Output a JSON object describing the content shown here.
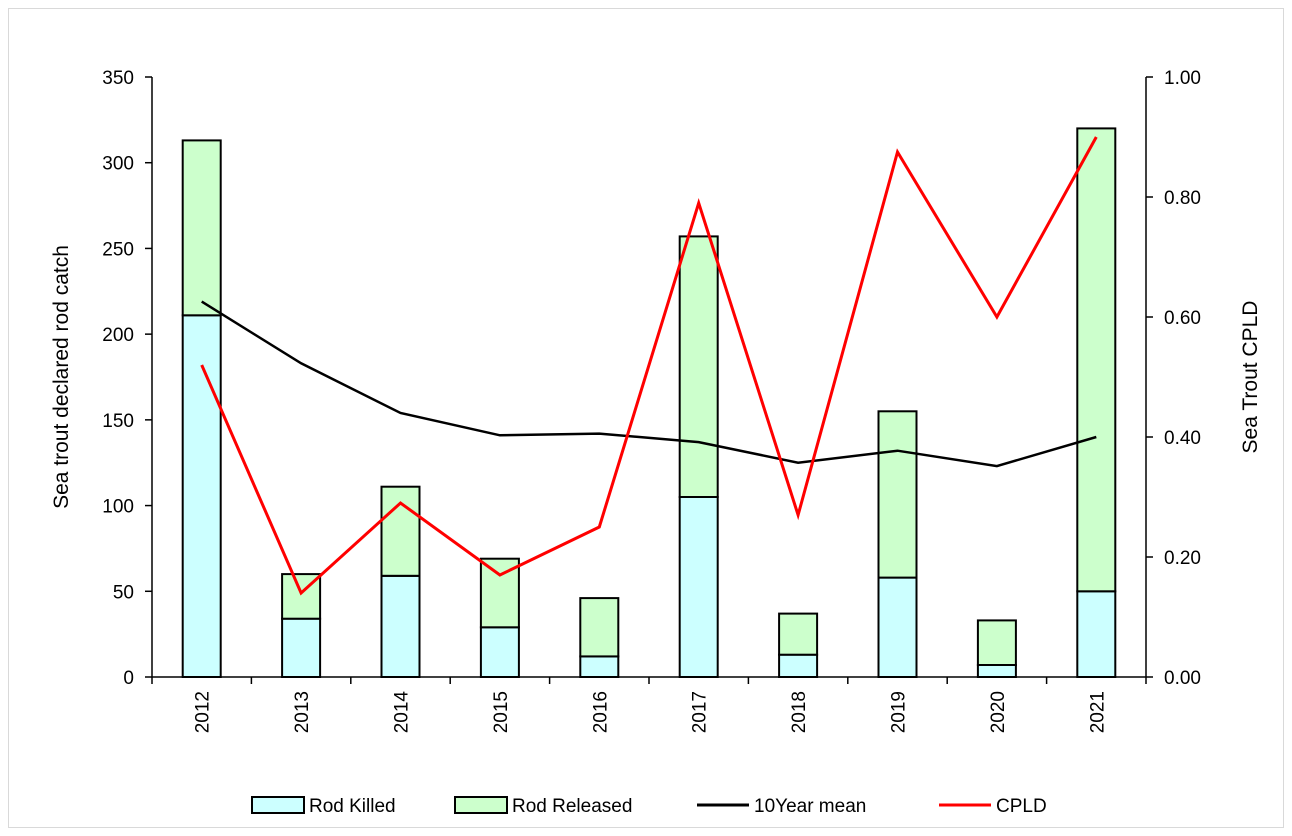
{
  "chart_data": {
    "type": "bar",
    "categories": [
      "2012",
      "2013",
      "2014",
      "2015",
      "2016",
      "2017",
      "2018",
      "2019",
      "2020",
      "2021"
    ],
    "series": [
      {
        "name": "Rod Killed",
        "type": "bar",
        "stack": "catch",
        "axis": "left",
        "color": "#ccffff",
        "values": [
          211,
          34,
          59,
          29,
          12,
          105,
          13,
          58,
          7,
          50
        ]
      },
      {
        "name": "Rod Released",
        "type": "bar",
        "stack": "catch",
        "axis": "left",
        "color": "#ccffcc",
        "values": [
          102,
          26,
          52,
          40,
          34,
          152,
          24,
          97,
          26,
          270
        ]
      },
      {
        "name": "10Year mean",
        "type": "line",
        "axis": "left",
        "color": "#000000",
        "values": [
          219,
          183,
          154,
          141,
          142,
          137,
          125,
          132,
          123,
          140
        ]
      },
      {
        "name": "CPLD",
        "type": "line",
        "axis": "right",
        "color": "#ff0000",
        "values": [
          0.52,
          0.14,
          0.29,
          0.17,
          0.25,
          0.79,
          0.27,
          0.875,
          0.6,
          0.9
        ]
      }
    ],
    "ylabel": "Sea trout declared rod catch",
    "y2label": "Sea Trout CPLD",
    "ylim": [
      0,
      350
    ],
    "y2lim": [
      0,
      1.0
    ],
    "yticks": [
      "0",
      "50",
      "100",
      "150",
      "200",
      "250",
      "300",
      "350"
    ],
    "y2ticks": [
      "0.00",
      "0.20",
      "0.40",
      "0.60",
      "0.80",
      "1.00"
    ],
    "legend_position": "bottom",
    "grid": false
  }
}
